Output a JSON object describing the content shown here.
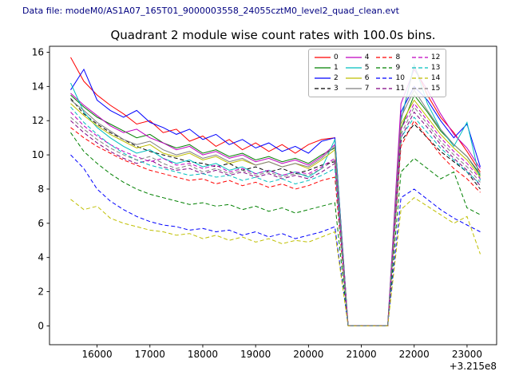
{
  "header": {
    "data_file": "Data file: modeM0/AS1A07_165T01_9000003558_24055cztM0_level2_quad_clean.evt"
  },
  "chart_data": {
    "type": "line",
    "title": "Quadrant 2 module wise count rates with 100.0s bins.",
    "xlabel": "",
    "ylabel": "",
    "x_offset_label": "+3.215e8",
    "xlim": [
      15100,
      23560
    ],
    "ylim": [
      -1.1,
      16.35
    ],
    "xticks": [
      16000,
      17000,
      18000,
      19000,
      20000,
      21000,
      22000,
      23000
    ],
    "yticks": [
      0,
      2,
      4,
      6,
      8,
      10,
      12,
      14,
      16
    ],
    "grid": false,
    "legend": {
      "position": "upper right",
      "columns": 4
    },
    "x": [
      15500,
      15750,
      16000,
      16250,
      16500,
      16750,
      17000,
      17250,
      17500,
      17750,
      18000,
      18250,
      18500,
      18750,
      19000,
      19250,
      19500,
      19750,
      20000,
      20250,
      20500,
      20750,
      21000,
      21250,
      21500,
      21750,
      22000,
      22250,
      22500,
      22750,
      23000,
      23250
    ],
    "series": [
      {
        "name": "0",
        "color": "#ff0000",
        "style": "solid",
        "values": [
          15.7,
          14.3,
          13.5,
          12.9,
          12.4,
          11.8,
          12.0,
          11.3,
          11.5,
          10.8,
          11.1,
          10.5,
          10.9,
          10.3,
          10.7,
          10.2,
          10.6,
          10.1,
          10.6,
          10.9,
          11.0,
          0,
          0,
          0,
          0,
          12.0,
          15.2,
          13.5,
          12.2,
          11.3,
          10.2,
          9.0
        ]
      },
      {
        "name": "1",
        "color": "#008000",
        "style": "solid",
        "values": [
          13.5,
          12.8,
          12.2,
          11.8,
          11.4,
          11.0,
          11.2,
          10.7,
          10.4,
          10.6,
          10.1,
          10.3,
          9.9,
          10.1,
          9.7,
          9.9,
          9.6,
          9.8,
          9.5,
          10.0,
          10.4,
          0,
          0,
          0,
          0,
          11.5,
          13.5,
          12.5,
          11.4,
          10.6,
          9.9,
          8.8
        ]
      },
      {
        "name": "2",
        "color": "#0000ff",
        "style": "solid",
        "values": [
          13.8,
          15.0,
          13.2,
          12.6,
          12.2,
          12.6,
          11.9,
          11.6,
          11.2,
          11.5,
          10.9,
          11.2,
          10.6,
          10.9,
          10.4,
          10.7,
          10.2,
          10.5,
          10.1,
          10.8,
          11.0,
          0,
          0,
          0,
          0,
          12.5,
          14.0,
          13.2,
          12.0,
          11.0,
          11.8,
          9.3
        ]
      },
      {
        "name": "3",
        "color": "#000000",
        "style": "dashed",
        "values": [
          13.3,
          12.4,
          11.8,
          11.3,
          10.9,
          10.5,
          10.2,
          10.0,
          9.8,
          9.6,
          9.5,
          9.3,
          9.5,
          9.1,
          9.3,
          9.0,
          9.2,
          8.9,
          9.1,
          9.4,
          9.6,
          0,
          0,
          0,
          0,
          10.8,
          11.8,
          11.0,
          10.2,
          9.6,
          9.0,
          8.0
        ]
      },
      {
        "name": "4",
        "color": "#bf00bf",
        "style": "solid",
        "values": [
          13.6,
          12.9,
          12.3,
          11.7,
          11.3,
          11.5,
          11.0,
          10.7,
          10.3,
          10.5,
          10.0,
          10.2,
          9.8,
          10.0,
          9.6,
          9.8,
          9.5,
          9.7,
          9.4,
          9.9,
          10.6,
          0,
          0,
          0,
          0,
          13.0,
          15.0,
          13.8,
          12.4,
          11.2,
          10.4,
          9.2
        ]
      },
      {
        "name": "5",
        "color": "#00bfbf",
        "style": "solid",
        "values": [
          14.2,
          12.5,
          11.6,
          11.0,
          10.5,
          10.1,
          10.3,
          9.8,
          9.5,
          9.7,
          9.3,
          9.5,
          9.1,
          9.3,
          8.9,
          9.1,
          8.8,
          9.0,
          8.7,
          9.2,
          10.9,
          0,
          0,
          0,
          0,
          12.0,
          15.3,
          13.0,
          11.5,
          10.5,
          11.9,
          8.5
        ]
      },
      {
        "name": "6",
        "color": "#bfbf00",
        "style": "solid",
        "values": [
          13.0,
          12.3,
          11.7,
          11.2,
          10.8,
          10.4,
          10.6,
          10.1,
          9.9,
          10.1,
          9.7,
          9.9,
          9.5,
          9.7,
          9.4,
          9.6,
          9.3,
          9.5,
          9.2,
          9.7,
          10.3,
          0,
          0,
          0,
          0,
          11.8,
          13.2,
          12.2,
          11.2,
          10.4,
          9.7,
          8.7
        ]
      },
      {
        "name": "7",
        "color": "#7f7f7f",
        "style": "solid",
        "values": [
          13.2,
          12.6,
          11.9,
          11.4,
          10.9,
          10.6,
          10.8,
          10.3,
          10.0,
          10.2,
          9.8,
          10.0,
          9.6,
          9.8,
          9.4,
          9.6,
          9.3,
          9.5,
          9.3,
          9.8,
          10.5,
          0,
          0,
          0,
          0,
          12.2,
          13.8,
          12.6,
          11.5,
          10.6,
          9.9,
          8.9
        ]
      },
      {
        "name": "8",
        "color": "#ff0000",
        "style": "dashed",
        "values": [
          11.6,
          11.0,
          10.5,
          10.1,
          9.7,
          9.4,
          9.1,
          8.9,
          8.7,
          8.5,
          8.6,
          8.3,
          8.5,
          8.2,
          8.4,
          8.1,
          8.3,
          8.0,
          8.2,
          8.5,
          8.7,
          0,
          0,
          0,
          0,
          10.5,
          12.0,
          11.0,
          10.0,
          9.2,
          8.6,
          7.8
        ]
      },
      {
        "name": "9",
        "color": "#008000",
        "style": "dashed",
        "values": [
          11.3,
          10.2,
          9.5,
          8.9,
          8.4,
          8.0,
          7.7,
          7.5,
          7.3,
          7.1,
          7.2,
          7.0,
          7.1,
          6.8,
          7.0,
          6.7,
          6.9,
          6.6,
          6.8,
          7.0,
          7.2,
          0,
          0,
          0,
          0,
          9.0,
          9.8,
          9.2,
          8.6,
          9.0,
          6.9,
          6.5
        ]
      },
      {
        "name": "10",
        "color": "#0000ff",
        "style": "dashed",
        "values": [
          10.0,
          9.2,
          8.0,
          7.3,
          6.8,
          6.4,
          6.1,
          5.9,
          5.8,
          5.6,
          5.7,
          5.5,
          5.6,
          5.3,
          5.5,
          5.2,
          5.4,
          5.1,
          5.3,
          5.5,
          5.8,
          0,
          0,
          0,
          0,
          7.5,
          8.0,
          7.4,
          6.8,
          6.3,
          5.9,
          5.5
        ]
      },
      {
        "name": "11",
        "color": "#800080",
        "style": "dashed",
        "values": [
          12.0,
          11.3,
          10.7,
          10.2,
          9.8,
          9.5,
          9.7,
          9.3,
          9.1,
          9.2,
          8.9,
          9.1,
          8.8,
          9.0,
          8.7,
          8.9,
          8.6,
          8.8,
          8.6,
          9.0,
          9.5,
          0,
          0,
          0,
          0,
          11.0,
          12.5,
          11.6,
          10.6,
          9.8,
          9.1,
          8.2
        ]
      },
      {
        "name": "12",
        "color": "#bf00bf",
        "style": "dashed",
        "values": [
          12.5,
          11.7,
          11.1,
          10.6,
          10.2,
          9.9,
          9.6,
          9.8,
          9.4,
          9.5,
          9.2,
          9.4,
          9.0,
          9.2,
          8.9,
          9.1,
          8.8,
          9.0,
          8.9,
          9.3,
          9.8,
          0,
          0,
          0,
          0,
          11.5,
          13.0,
          12.0,
          11.0,
          10.2,
          9.5,
          8.6
        ]
      },
      {
        "name": "13",
        "color": "#00bfbf",
        "style": "dashed",
        "values": [
          12.8,
          11.9,
          11.2,
          10.6,
          10.1,
          9.7,
          9.4,
          9.2,
          9.0,
          8.8,
          8.9,
          8.7,
          8.8,
          8.5,
          8.7,
          8.4,
          8.6,
          8.3,
          8.5,
          8.8,
          9.2,
          0,
          0,
          0,
          0,
          11.0,
          12.2,
          11.3,
          10.4,
          9.7,
          9.0,
          8.3
        ]
      },
      {
        "name": "14",
        "color": "#bfbf00",
        "style": "dashed",
        "values": [
          7.4,
          6.8,
          7.0,
          6.3,
          6.0,
          5.8,
          5.6,
          5.5,
          5.3,
          5.4,
          5.1,
          5.3,
          5.0,
          5.2,
          4.9,
          5.1,
          4.8,
          5.0,
          4.9,
          5.2,
          5.5,
          0,
          0,
          0,
          0,
          6.8,
          7.5,
          7.0,
          6.5,
          6.0,
          6.4,
          4.2
        ]
      },
      {
        "name": "15",
        "color": "#7f7f7f",
        "style": "dashed",
        "values": [
          12.2,
          11.5,
          10.9,
          10.4,
          10.0,
          9.7,
          9.9,
          9.5,
          9.2,
          9.4,
          9.0,
          9.2,
          8.9,
          9.1,
          8.8,
          9.0,
          8.7,
          8.9,
          8.8,
          9.2,
          9.7,
          0,
          0,
          0,
          0,
          11.2,
          12.8,
          11.8,
          10.8,
          10.0,
          9.3,
          8.4
        ]
      }
    ]
  }
}
